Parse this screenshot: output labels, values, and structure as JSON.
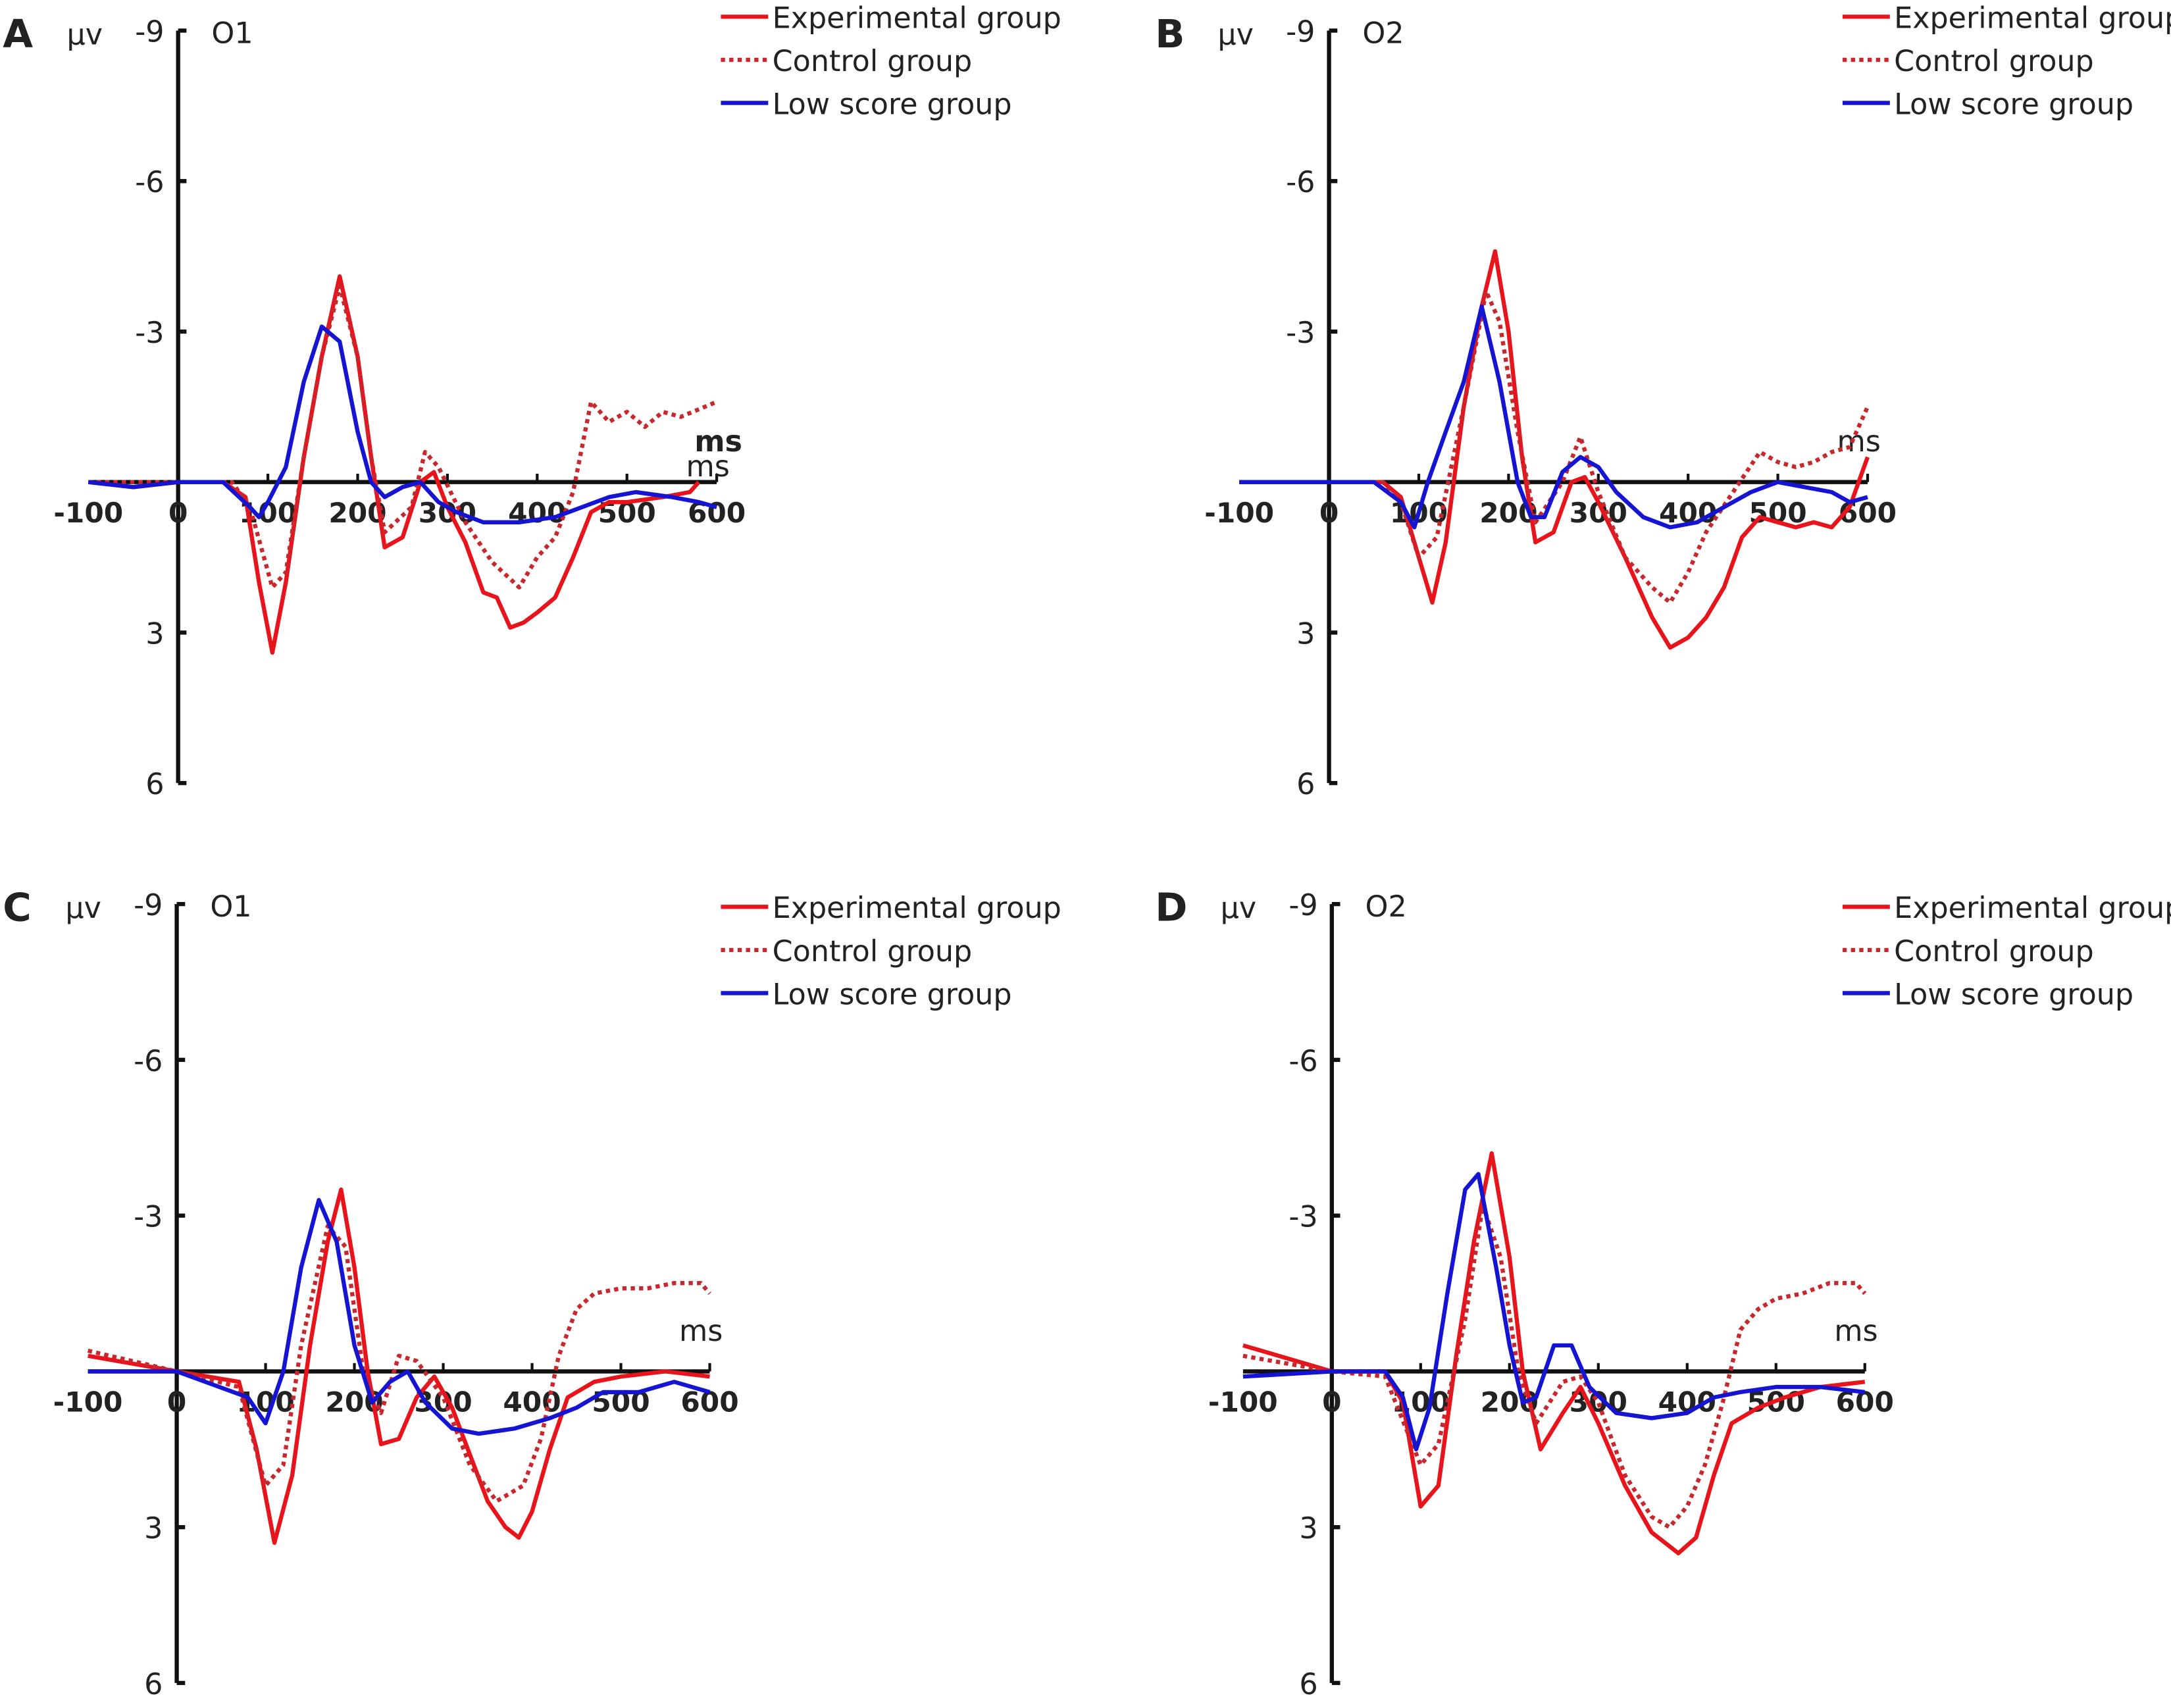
{
  "colors": {
    "experimental": "#e8141c",
    "control": "#c8282d",
    "low": "#1414d2",
    "axis": "#111111"
  },
  "chart_data": [
    {
      "type": "line",
      "panel_label": "A",
      "channel": "O1",
      "y_unit": "µv",
      "x_unit": [
        "ms",
        "ms"
      ],
      "y_inverted": true,
      "ylim": [
        -9,
        6
      ],
      "xlim": [
        -100,
        600
      ],
      "y_ticks": [
        "-9",
        "-6",
        "-3",
        "3",
        "6"
      ],
      "x_ticks": [
        "-100",
        "0",
        "100",
        "200",
        "300",
        "400",
        "500",
        "600"
      ],
      "legend": [
        "Experimental group",
        "Control group",
        "Low score group"
      ],
      "legend_position": "top-right",
      "series": [
        {
          "name": "Experimental group",
          "style": "solid",
          "x": [
            -100,
            -50,
            0,
            50,
            75,
            90,
            105,
            120,
            140,
            160,
            180,
            200,
            215,
            230,
            250,
            270,
            285,
            300,
            320,
            340,
            355,
            370,
            385,
            400,
            420,
            440,
            460,
            480,
            500,
            540,
            570,
            580
          ],
          "y": [
            0,
            0.1,
            0,
            0,
            0.3,
            2,
            3.4,
            2,
            -0.5,
            -2.5,
            -4.1,
            -2.5,
            -0.5,
            1.3,
            1.1,
            0,
            -0.2,
            0.5,
            1.2,
            2.2,
            2.3,
            2.9,
            2.8,
            2.6,
            2.3,
            1.5,
            0.6,
            0.4,
            0.4,
            0.3,
            0.2,
            0
          ]
        },
        {
          "name": "Control group",
          "style": "dotted",
          "x": [
            -100,
            0,
            60,
            80,
            105,
            120,
            140,
            160,
            180,
            200,
            215,
            230,
            260,
            275,
            290,
            320,
            350,
            380,
            400,
            420,
            440,
            460,
            480,
            500,
            520,
            540,
            560,
            600
          ],
          "y": [
            0,
            0,
            0,
            0.5,
            2.1,
            1.8,
            -0.5,
            -2.5,
            -3.9,
            -2.5,
            -0.5,
            1.0,
            0.5,
            -0.6,
            -0.3,
            0.8,
            1.6,
            2.1,
            1.5,
            1.1,
            0.2,
            -1.6,
            -1.2,
            -1.4,
            -1.1,
            -1.4,
            -1.3,
            -1.6
          ]
        },
        {
          "name": "Low score group",
          "style": "solid",
          "x": [
            -100,
            -50,
            0,
            50,
            80,
            90,
            100,
            120,
            140,
            160,
            180,
            200,
            215,
            230,
            250,
            270,
            290,
            310,
            340,
            380,
            420,
            450,
            480,
            510,
            550,
            580,
            600
          ],
          "y": [
            0,
            0.1,
            0,
            0,
            0.5,
            0.7,
            0.4,
            -0.3,
            -2.0,
            -3.1,
            -2.8,
            -1.0,
            0,
            0.3,
            0.1,
            0,
            0.4,
            0.6,
            0.8,
            0.8,
            0.7,
            0.5,
            0.3,
            0.2,
            0.3,
            0.4,
            0.5
          ]
        }
      ]
    },
    {
      "type": "line",
      "panel_label": "B",
      "channel": "O2",
      "y_unit": "µv",
      "x_unit": [
        "ms"
      ],
      "y_inverted": true,
      "ylim": [
        -9,
        6
      ],
      "xlim": [
        -100,
        600
      ],
      "y_ticks": [
        "-9",
        "-6",
        "-3",
        "3",
        "6"
      ],
      "x_ticks": [
        "-100",
        "0",
        "100",
        "200",
        "300",
        "400",
        "500",
        "600"
      ],
      "legend": [
        "Experimental group",
        "Control group",
        "Low score group"
      ],
      "legend_position": "top-right",
      "series": [
        {
          "name": "Experimental group",
          "style": "solid",
          "x": [
            -100,
            0,
            60,
            80,
            100,
            115,
            130,
            150,
            170,
            185,
            200,
            215,
            230,
            250,
            270,
            285,
            300,
            330,
            360,
            380,
            400,
            420,
            440,
            460,
            480,
            500,
            520,
            540,
            560,
            580,
            600
          ],
          "y": [
            0,
            0,
            0,
            0.3,
            1.5,
            2.4,
            1.2,
            -1.5,
            -3.5,
            -4.6,
            -3,
            -0.5,
            1.2,
            1,
            0,
            -0.1,
            0.4,
            1.5,
            2.7,
            3.3,
            3.1,
            2.7,
            2.1,
            1.1,
            0.7,
            0.8,
            0.9,
            0.8,
            0.9,
            0.5,
            -0.5
          ]
        },
        {
          "name": "Control group",
          "style": "dotted",
          "x": [
            -100,
            0,
            60,
            80,
            100,
            120,
            150,
            175,
            190,
            210,
            230,
            260,
            280,
            300,
            330,
            360,
            380,
            400,
            420,
            450,
            480,
            500,
            520,
            540,
            560,
            580,
            600
          ],
          "y": [
            0,
            0,
            0,
            0.4,
            1.5,
            1.1,
            -1.5,
            -3.8,
            -3.2,
            -1,
            0.8,
            0,
            -0.9,
            0.2,
            1.5,
            2.1,
            2.4,
            1.8,
            1.0,
            0.2,
            -0.6,
            -0.4,
            -0.3,
            -0.4,
            -0.6,
            -0.7,
            -1.5
          ]
        },
        {
          "name": "Low score group",
          "style": "solid",
          "x": [
            -100,
            0,
            50,
            80,
            95,
            110,
            130,
            150,
            170,
            190,
            210,
            225,
            240,
            260,
            280,
            300,
            320,
            350,
            380,
            410,
            440,
            470,
            500,
            530,
            560,
            580,
            600
          ],
          "y": [
            0,
            0,
            0,
            0.4,
            0.9,
            0,
            -1.0,
            -2.0,
            -3.5,
            -2.0,
            0,
            0.7,
            0.7,
            -0.2,
            -0.5,
            -0.3,
            0.2,
            0.7,
            0.9,
            0.8,
            0.5,
            0.2,
            0,
            0.1,
            0.2,
            0.4,
            0.3
          ]
        }
      ]
    },
    {
      "type": "line",
      "panel_label": "C",
      "channel": "O1",
      "y_unit": "µv",
      "x_unit": [
        "ms"
      ],
      "y_inverted": true,
      "ylim": [
        -9,
        6
      ],
      "xlim": [
        -100,
        600
      ],
      "y_ticks": [
        "-9",
        "-6",
        "-3",
        "3",
        "6"
      ],
      "x_ticks": [
        "-100",
        "0",
        "100",
        "200",
        "300",
        "400",
        "500",
        "600"
      ],
      "legend": [
        "Experimental group",
        "Control group",
        "Low score group"
      ],
      "legend_position": "top-right",
      "series": [
        {
          "name": "Experimental group",
          "style": "solid",
          "x": [
            -100,
            0,
            70,
            90,
            110,
            130,
            150,
            170,
            185,
            200,
            215,
            230,
            250,
            270,
            290,
            310,
            330,
            350,
            370,
            385,
            400,
            420,
            440,
            470,
            500,
            550,
            600
          ],
          "y": [
            -0.3,
            0,
            0.2,
            1.5,
            3.3,
            2,
            -0.5,
            -2.5,
            -3.5,
            -2,
            0,
            1.4,
            1.3,
            0.5,
            0.1,
            0.7,
            1.6,
            2.5,
            3.0,
            3.2,
            2.7,
            1.5,
            0.5,
            0.2,
            0.1,
            0,
            0.1
          ]
        },
        {
          "name": "Control group",
          "style": "dotted",
          "x": [
            -100,
            0,
            70,
            100,
            120,
            140,
            170,
            190,
            210,
            230,
            250,
            270,
            300,
            330,
            360,
            390,
            410,
            430,
            450,
            470,
            500,
            530,
            560,
            590,
            600
          ],
          "y": [
            -0.4,
            0,
            0.3,
            2.2,
            1.8,
            -0.5,
            -2.8,
            -2.4,
            0,
            0.8,
            -0.3,
            -0.2,
            0.5,
            1.8,
            2.5,
            2.2,
            1.3,
            -0.3,
            -1.2,
            -1.5,
            -1.6,
            -1.6,
            -1.7,
            -1.7,
            -1.5
          ]
        },
        {
          "name": "Low score group",
          "style": "solid",
          "x": [
            -100,
            0,
            80,
            100,
            120,
            140,
            160,
            180,
            200,
            220,
            240,
            260,
            280,
            310,
            340,
            380,
            420,
            450,
            480,
            520,
            560,
            600
          ],
          "y": [
            0,
            0,
            0.5,
            1.0,
            0,
            -2,
            -3.3,
            -2.5,
            -0.5,
            0.6,
            0.2,
            0,
            0.6,
            1.1,
            1.2,
            1.1,
            0.9,
            0.7,
            0.4,
            0.4,
            0.2,
            0.4
          ]
        }
      ]
    },
    {
      "type": "line",
      "panel_label": "D",
      "channel": "O2",
      "y_unit": "µv",
      "x_unit": [
        "ms"
      ],
      "y_inverted": true,
      "ylim": [
        -9,
        6
      ],
      "xlim": [
        -100,
        600
      ],
      "y_ticks": [
        "-9",
        "-6",
        "-3",
        "3",
        "6"
      ],
      "x_ticks": [
        "-100",
        "0",
        "100",
        "200",
        "300",
        "400",
        "500",
        "600"
      ],
      "legend": [
        "Experimental group",
        "Control group",
        "Low score group"
      ],
      "legend_position": "top-right",
      "series": [
        {
          "name": "Experimental group",
          "style": "solid",
          "x": [
            -100,
            0,
            60,
            80,
            100,
            120,
            140,
            160,
            180,
            200,
            215,
            235,
            260,
            280,
            300,
            330,
            360,
            390,
            410,
            430,
            450,
            480,
            510,
            550,
            600
          ],
          "y": [
            -0.5,
            0,
            0,
            0.6,
            2.6,
            2.2,
            -0.3,
            -2.5,
            -4.2,
            -2.2,
            0,
            1.5,
            0.8,
            0.3,
            1.0,
            2.2,
            3.1,
            3.5,
            3.2,
            2.0,
            1.0,
            0.7,
            0.5,
            0.3,
            0.2
          ]
        },
        {
          "name": "Control group",
          "style": "dotted",
          "x": [
            -100,
            0,
            60,
            100,
            120,
            150,
            170,
            190,
            210,
            230,
            260,
            280,
            300,
            330,
            360,
            380,
            400,
            420,
            440,
            460,
            480,
            500,
            530,
            560,
            590,
            600
          ],
          "y": [
            -0.3,
            0,
            0.1,
            1.8,
            1.4,
            -1.0,
            -3.2,
            -2.2,
            0,
            1.0,
            0.2,
            0.1,
            0.6,
            2.0,
            2.8,
            3.0,
            2.6,
            1.8,
            0.6,
            -0.8,
            -1.2,
            -1.4,
            -1.5,
            -1.7,
            -1.7,
            -1.5
          ]
        },
        {
          "name": "Low score group",
          "style": "solid",
          "x": [
            -100,
            0,
            60,
            80,
            95,
            110,
            130,
            150,
            165,
            185,
            200,
            215,
            230,
            250,
            270,
            290,
            320,
            360,
            400,
            430,
            460,
            500,
            550,
            600
          ],
          "y": [
            0.1,
            0,
            0,
            0.5,
            1.5,
            0.7,
            -1.5,
            -3.5,
            -3.8,
            -2,
            -0.5,
            0.6,
            0.5,
            -0.5,
            -0.5,
            0.3,
            0.8,
            0.9,
            0.8,
            0.5,
            0.4,
            0.3,
            0.3,
            0.4
          ]
        }
      ]
    }
  ]
}
